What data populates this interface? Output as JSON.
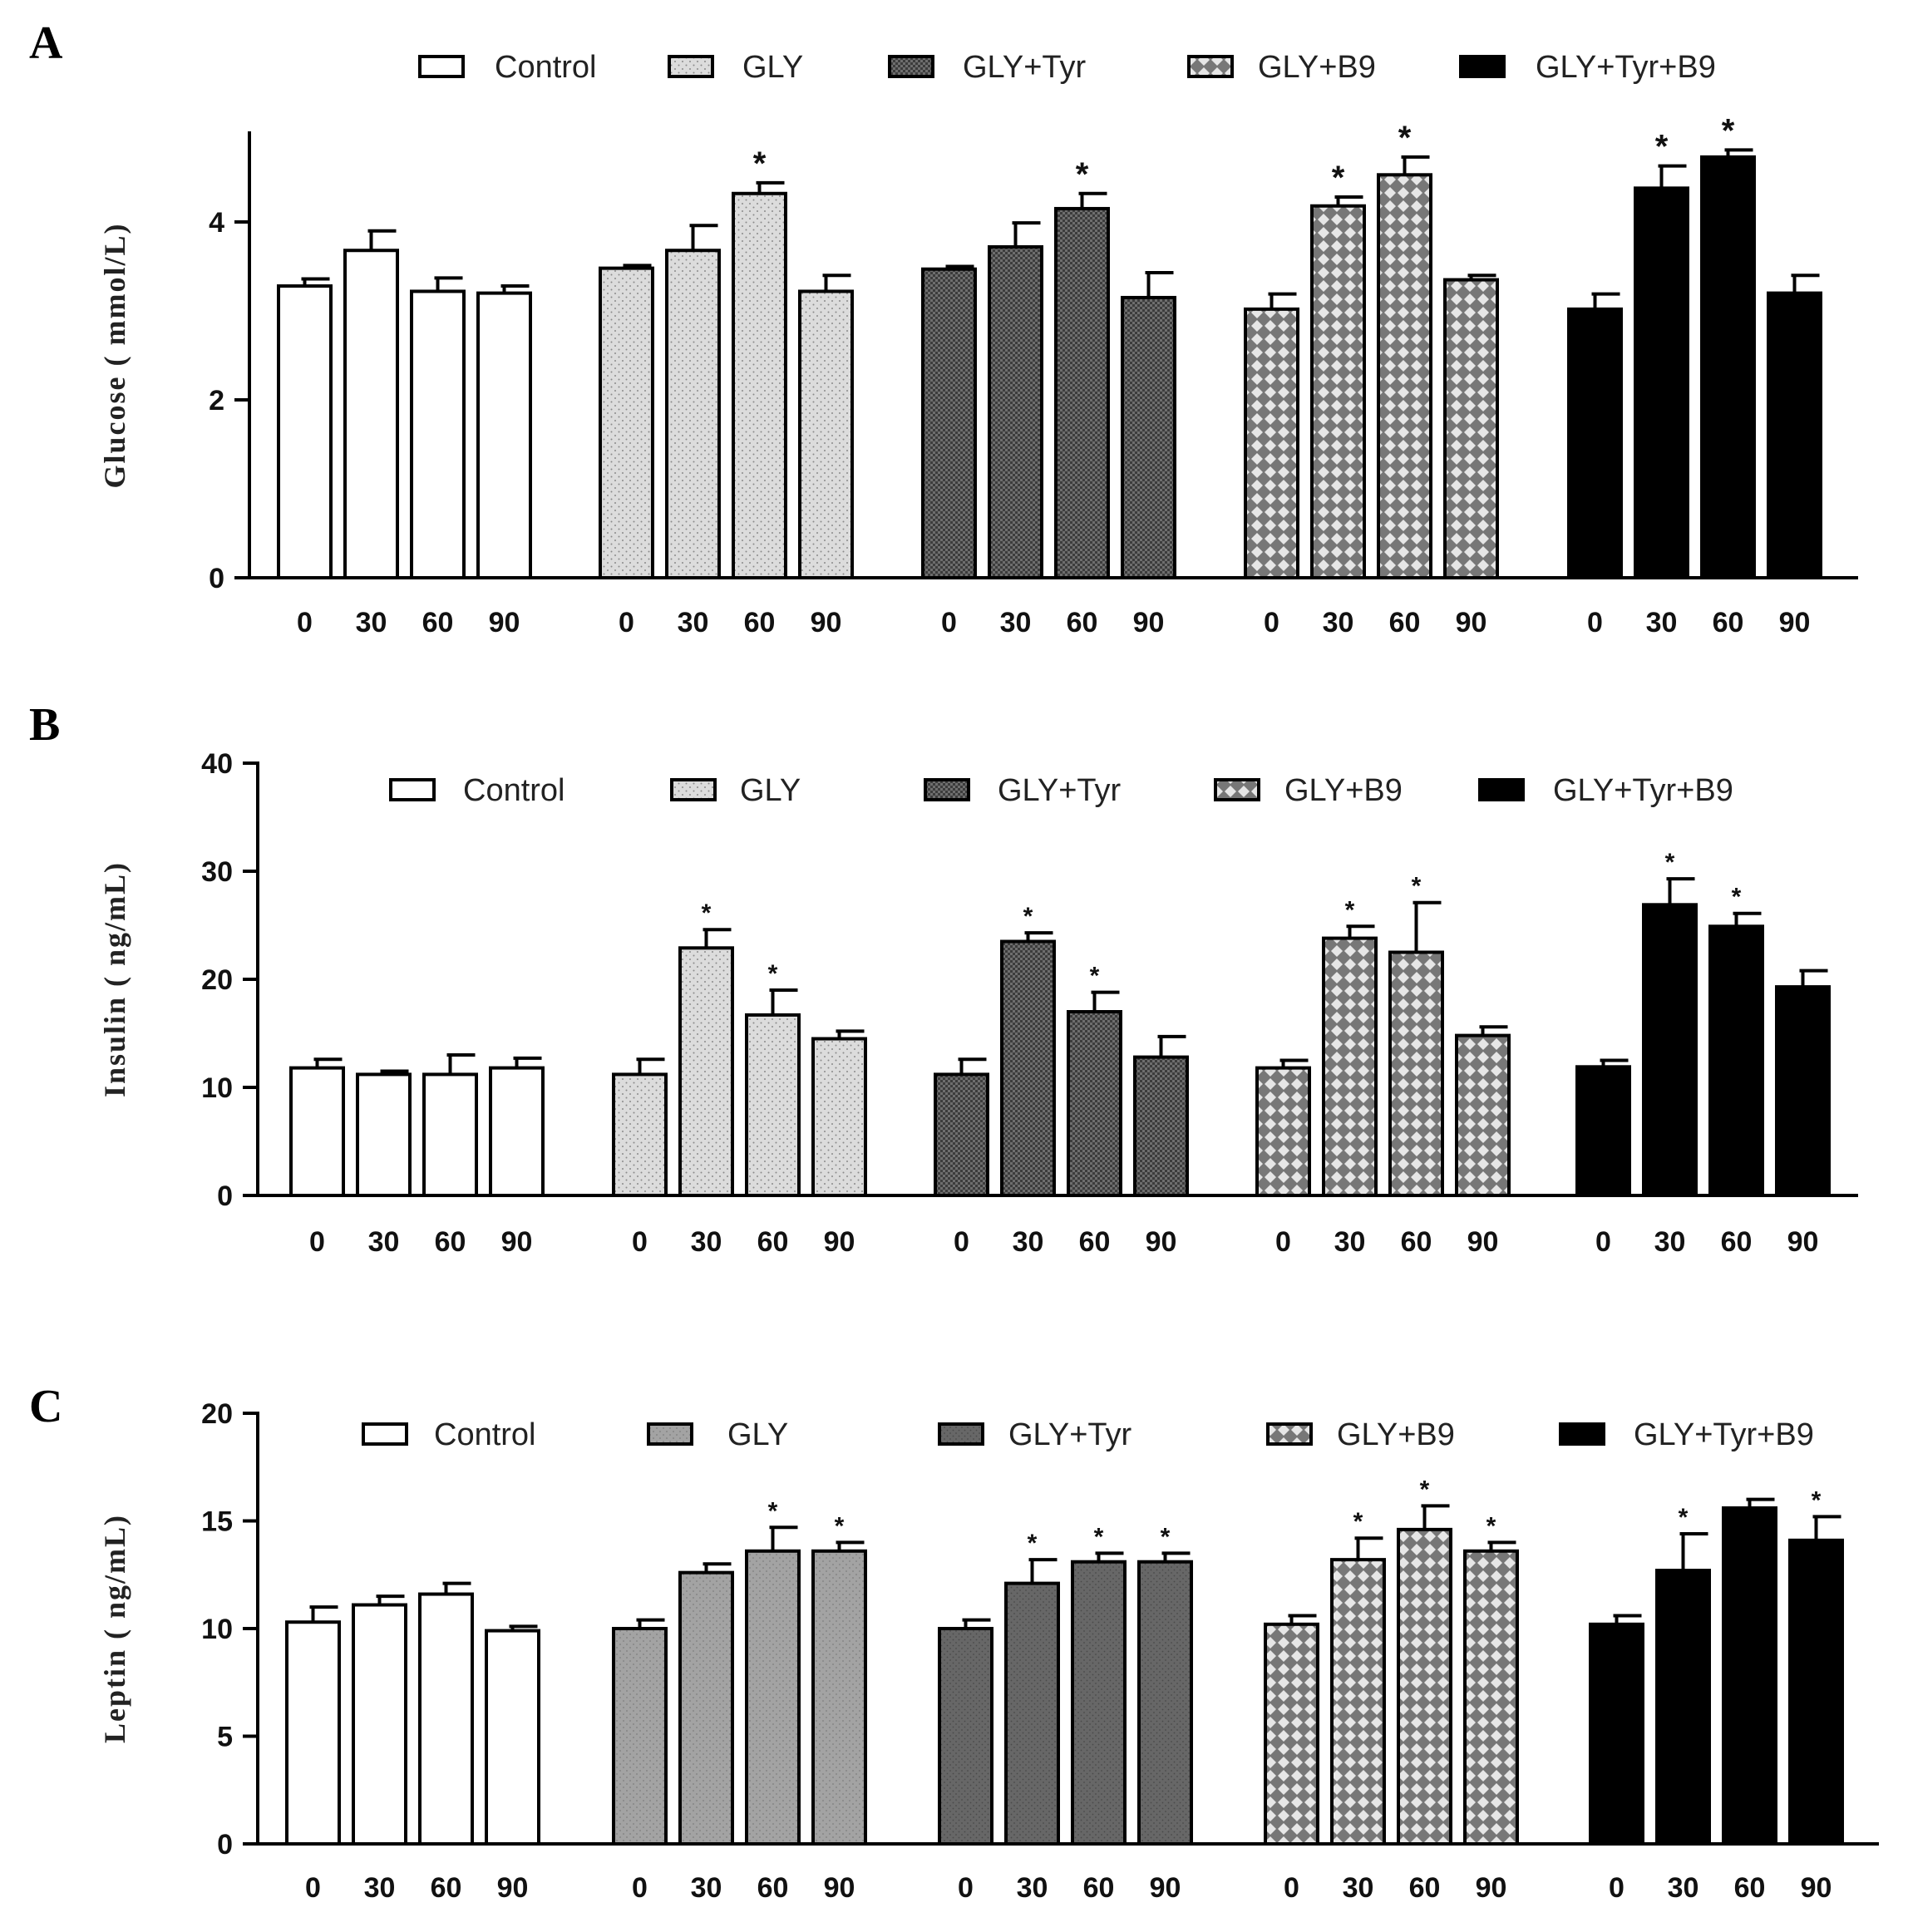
{
  "chart_data": [
    {
      "type": "bar",
      "panel": "A",
      "ylabel": "Glucose ( mmol/L)",
      "ylim": [
        0,
        5
      ],
      "yticks": [
        "0",
        "2",
        "4"
      ],
      "categories": [
        "0",
        "30",
        "60",
        "90"
      ],
      "legend": [
        "Control",
        "GLY",
        "GLY+Tyr",
        "GLY+B9",
        "GLY+Tyr+B9"
      ],
      "series": [
        {
          "name": "Control",
          "values": [
            3.28,
            3.68,
            3.22,
            3.2
          ],
          "errors": [
            0.08,
            0.22,
            0.15,
            0.08
          ],
          "sig": [
            "",
            "",
            "",
            ""
          ]
        },
        {
          "name": "GLY",
          "values": [
            3.48,
            3.68,
            4.32,
            3.22
          ],
          "errors": [
            0.03,
            0.28,
            0.12,
            0.18
          ],
          "sig": [
            "",
            "",
            "*",
            ""
          ]
        },
        {
          "name": "GLY+Tyr",
          "values": [
            3.47,
            3.72,
            4.15,
            3.15
          ],
          "errors": [
            0.03,
            0.27,
            0.17,
            0.28
          ],
          "sig": [
            "",
            "",
            "*",
            ""
          ]
        },
        {
          "name": "GLY+B9",
          "values": [
            3.02,
            4.18,
            4.53,
            3.35
          ],
          "errors": [
            0.17,
            0.1,
            0.2,
            0.05
          ],
          "sig": [
            "",
            "*",
            "*",
            ""
          ]
        },
        {
          "name": "GLY+Tyr+B9",
          "values": [
            3.02,
            4.38,
            4.73,
            3.2
          ],
          "errors": [
            0.17,
            0.25,
            0.08,
            0.2
          ],
          "sig": [
            "",
            "*",
            "*",
            ""
          ]
        }
      ]
    },
    {
      "type": "bar",
      "panel": "B",
      "ylabel": "Insulin ( ng/mL)",
      "ylim": [
        0,
        40
      ],
      "yticks": [
        "0",
        "10",
        "20",
        "30",
        "40"
      ],
      "categories": [
        "0",
        "30",
        "60",
        "90"
      ],
      "legend": [
        "Control",
        "GLY",
        "GLY+Tyr",
        "GLY+B9",
        "GLY+Tyr+B9"
      ],
      "series": [
        {
          "name": "Control",
          "values": [
            11.8,
            11.2,
            11.2,
            11.8
          ],
          "errors": [
            0.8,
            0.3,
            1.8,
            0.9
          ],
          "sig": [
            "",
            "",
            "",
            ""
          ]
        },
        {
          "name": "GLY",
          "values": [
            11.2,
            22.9,
            16.7,
            14.5
          ],
          "errors": [
            1.4,
            1.7,
            2.3,
            0.7
          ],
          "sig": [
            "",
            "*",
            "*",
            ""
          ]
        },
        {
          "name": "GLY+Tyr",
          "values": [
            11.2,
            23.5,
            17.0,
            12.8
          ],
          "errors": [
            1.4,
            0.8,
            1.8,
            1.9
          ],
          "sig": [
            "",
            "*",
            "*",
            ""
          ]
        },
        {
          "name": "GLY+B9",
          "values": [
            11.8,
            23.8,
            22.5,
            14.8
          ],
          "errors": [
            0.7,
            1.1,
            4.6,
            0.8
          ],
          "sig": [
            "",
            "*",
            "*",
            ""
          ]
        },
        {
          "name": "GLY+Tyr+B9",
          "values": [
            11.9,
            26.9,
            24.9,
            19.3
          ],
          "errors": [
            0.6,
            2.4,
            1.2,
            1.5
          ],
          "sig": [
            "",
            "*",
            "*",
            ""
          ]
        }
      ]
    },
    {
      "type": "bar",
      "panel": "C",
      "ylabel": "Leptin ( ng/mL)",
      "ylim": [
        0,
        20
      ],
      "yticks": [
        "0",
        "5",
        "10",
        "15",
        "20"
      ],
      "categories": [
        "0",
        "30",
        "60",
        "90"
      ],
      "legend": [
        "Control",
        "GLY",
        "GLY+Tyr",
        "GLY+B9",
        "GLY+Tyr+B9"
      ],
      "series": [
        {
          "name": "Control",
          "values": [
            10.3,
            11.1,
            11.6,
            9.9
          ],
          "errors": [
            0.7,
            0.4,
            0.5,
            0.2
          ],
          "sig": [
            "",
            "",
            "",
            ""
          ]
        },
        {
          "name": "GLY",
          "values": [
            10.0,
            12.6,
            13.6,
            13.6
          ],
          "errors": [
            0.4,
            0.4,
            1.1,
            0.4
          ],
          "sig": [
            "",
            "",
            "*",
            "*"
          ]
        },
        {
          "name": "GLY+Tyr",
          "values": [
            10.0,
            12.1,
            13.1,
            13.1
          ],
          "errors": [
            0.4,
            1.1,
            0.4,
            0.4
          ],
          "sig": [
            "",
            "*",
            "*",
            "*"
          ]
        },
        {
          "name": "GLY+B9",
          "values": [
            10.2,
            13.2,
            14.6,
            13.6
          ],
          "errors": [
            0.4,
            1.0,
            1.1,
            0.4
          ],
          "sig": [
            "",
            "*",
            "*",
            "*"
          ]
        },
        {
          "name": "GLY+Tyr+B9",
          "values": [
            10.2,
            12.7,
            15.6,
            14.1
          ],
          "errors": [
            0.4,
            1.7,
            0.4,
            1.1
          ],
          "sig": [
            "",
            "*",
            "",
            "*"
          ]
        }
      ]
    }
  ]
}
